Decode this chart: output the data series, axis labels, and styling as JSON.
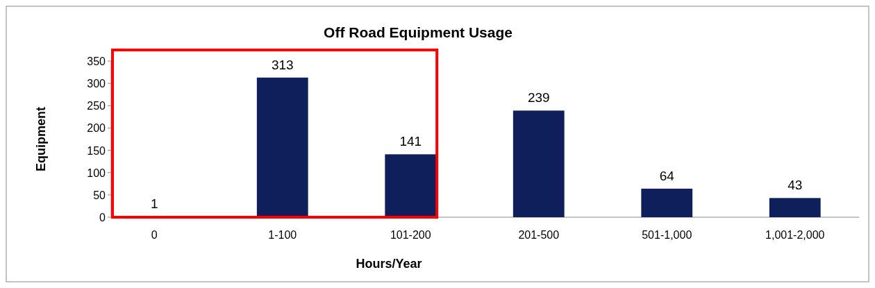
{
  "chart_data": {
    "type": "bar",
    "title": "Off Road Equipment Usage",
    "xlabel": "Hours/Year",
    "ylabel": "Equipment",
    "categories": [
      "0",
      "1-100",
      "101-200",
      "201-500",
      "501-1,000",
      "1,001-2,000"
    ],
    "values": [
      1,
      313,
      141,
      239,
      64,
      43
    ],
    "color": "#0f1f5c",
    "ylim": [
      0,
      350
    ],
    "yticks": [
      0,
      50,
      100,
      150,
      200,
      250,
      300,
      350
    ],
    "data_labels": true
  }
}
